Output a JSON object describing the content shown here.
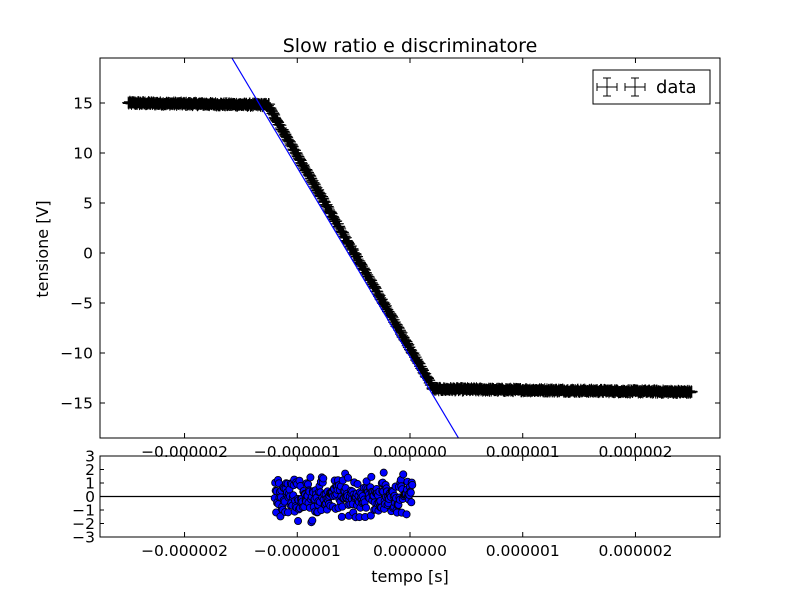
{
  "chart_data": [
    {
      "type": "scatter",
      "panel": "main",
      "title": "Slow ratio e discriminatore",
      "xlabel": "",
      "ylabel": "tensione [V]",
      "xlim": [
        -2.75e-06,
        2.75e-06
      ],
      "ylim": [
        -18.5,
        19.5
      ],
      "grid": false,
      "legend": {
        "position": "top-right",
        "entries": [
          "data"
        ]
      },
      "x_ticks": [
        -2e-06,
        -1e-06,
        0,
        1e-06,
        2e-06
      ],
      "x_tick_labels": [
        "−0.000002",
        "−0.000001",
        "0.000000",
        "0.000001",
        "0.000002"
      ],
      "y_ticks": [
        15,
        10,
        5,
        0,
        -5,
        -10,
        -15
      ],
      "y_tick_labels": [
        "15",
        "10",
        "5",
        "0",
        "−5",
        "−10",
        "−15"
      ],
      "series": [
        {
          "name": "data",
          "style": "errorbar markers",
          "segments": [
            {
              "x_from": -2.5e-06,
              "x_to": -1.25e-06,
              "y_from": 15.0,
              "y_to": 14.8
            },
            {
              "x_from": -1.25e-06,
              "x_to": 2e-07,
              "y_from": 14.6,
              "y_to": -13.4
            },
            {
              "x_from": 2e-07,
              "x_to": 2.5e-06,
              "y_from": -13.6,
              "y_to": -13.9
            }
          ]
        },
        {
          "style": "fit line",
          "color": "#0000ff",
          "x": [
            -1.58e-06,
            4.3e-07
          ],
          "y": [
            19.5,
            -18.5
          ]
        }
      ]
    },
    {
      "type": "scatter",
      "panel": "residuals",
      "xlabel": "tempo [s]",
      "ylabel": "",
      "xlim": [
        -2.75e-06,
        2.75e-06
      ],
      "ylim": [
        -3,
        3
      ],
      "grid": false,
      "x_ticks": [
        -2e-06,
        -1e-06,
        0,
        1e-06,
        2e-06
      ],
      "x_tick_labels": [
        "−0.000002",
        "−0.000001",
        "0.000000",
        "0.000001",
        "0.000002"
      ],
      "y_ticks": [
        3,
        2,
        1,
        0,
        -1,
        -2,
        -3
      ],
      "y_tick_labels": [
        "3",
        "2",
        "1",
        "0",
        "−1",
        "−2",
        "−3"
      ],
      "series": [
        {
          "style": "markers",
          "color": "#0000ff",
          "x_range": [
            -1.2e-06,
            2e-08
          ],
          "y_range": [
            -2.5,
            2.8
          ]
        },
        {
          "style": "zero line",
          "y": 0
        }
      ]
    }
  ]
}
